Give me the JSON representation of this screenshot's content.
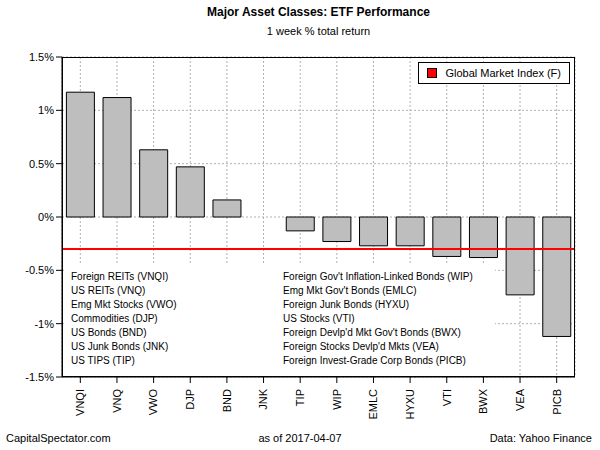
{
  "chart_data": {
    "type": "bar",
    "title": "Major Asset Classes: ETF Performance",
    "subtitle": "1 week % total return",
    "categories": [
      "VNQI",
      "VNQ",
      "VWO",
      "DJP",
      "BND",
      "JNK",
      "TIP",
      "WIP",
      "EMLC",
      "HYXU",
      "VTI",
      "BWX",
      "VEA",
      "PICB"
    ],
    "values": [
      1.17,
      1.12,
      0.63,
      0.47,
      0.16,
      0,
      -0.13,
      -0.23,
      -0.27,
      -0.27,
      -0.37,
      -0.38,
      -0.73,
      -1.12
    ],
    "color": "#bebebe",
    "ylim": [
      -1.5,
      1.5
    ],
    "yticks": [
      {
        "value": -1.5,
        "label": "-1.5%"
      },
      {
        "value": -1,
        "label": "-1%"
      },
      {
        "value": -0.5,
        "label": "-0.5%"
      },
      {
        "value": 0,
        "label": "0%"
      },
      {
        "value": 0.5,
        "label": "0.5%"
      },
      {
        "value": 1,
        "label": "1%"
      },
      {
        "value": 1.5,
        "label": "1.5%"
      }
    ],
    "grid": true,
    "legend": "upper right",
    "reference_line": {
      "name": "Global Market Index (F)",
      "value": -0.3,
      "color": "#ff0000"
    },
    "annotations": [
      "Foreign REITs (VNQI)",
      "US REITs (VNQ)",
      "Emg Mkt Stocks (VWO)",
      "Commodities (DJP)",
      "US Bonds (BND)",
      "US Junk Bonds (JNK)",
      "US TIPS (TIP)",
      "Foreign Gov't Inflation-Linked Bonds (WIP)",
      "Emg Mkt Gov't Bonds (EMLC)",
      "Foreign Junk Bonds (HYXU)",
      "US Stocks (VTI)",
      "Foreign Devlp'd Mkt Gov't Bonds (BWX)",
      "Foreign Stocks Devlp'd Mkts (VEA)",
      "Foreign Invest-Grade Corp Bonds (PICB)"
    ],
    "source": "CapitalSpectator.com",
    "date_note": "as of 2017-04-07",
    "credit": "Data: Yahoo Finance"
  }
}
